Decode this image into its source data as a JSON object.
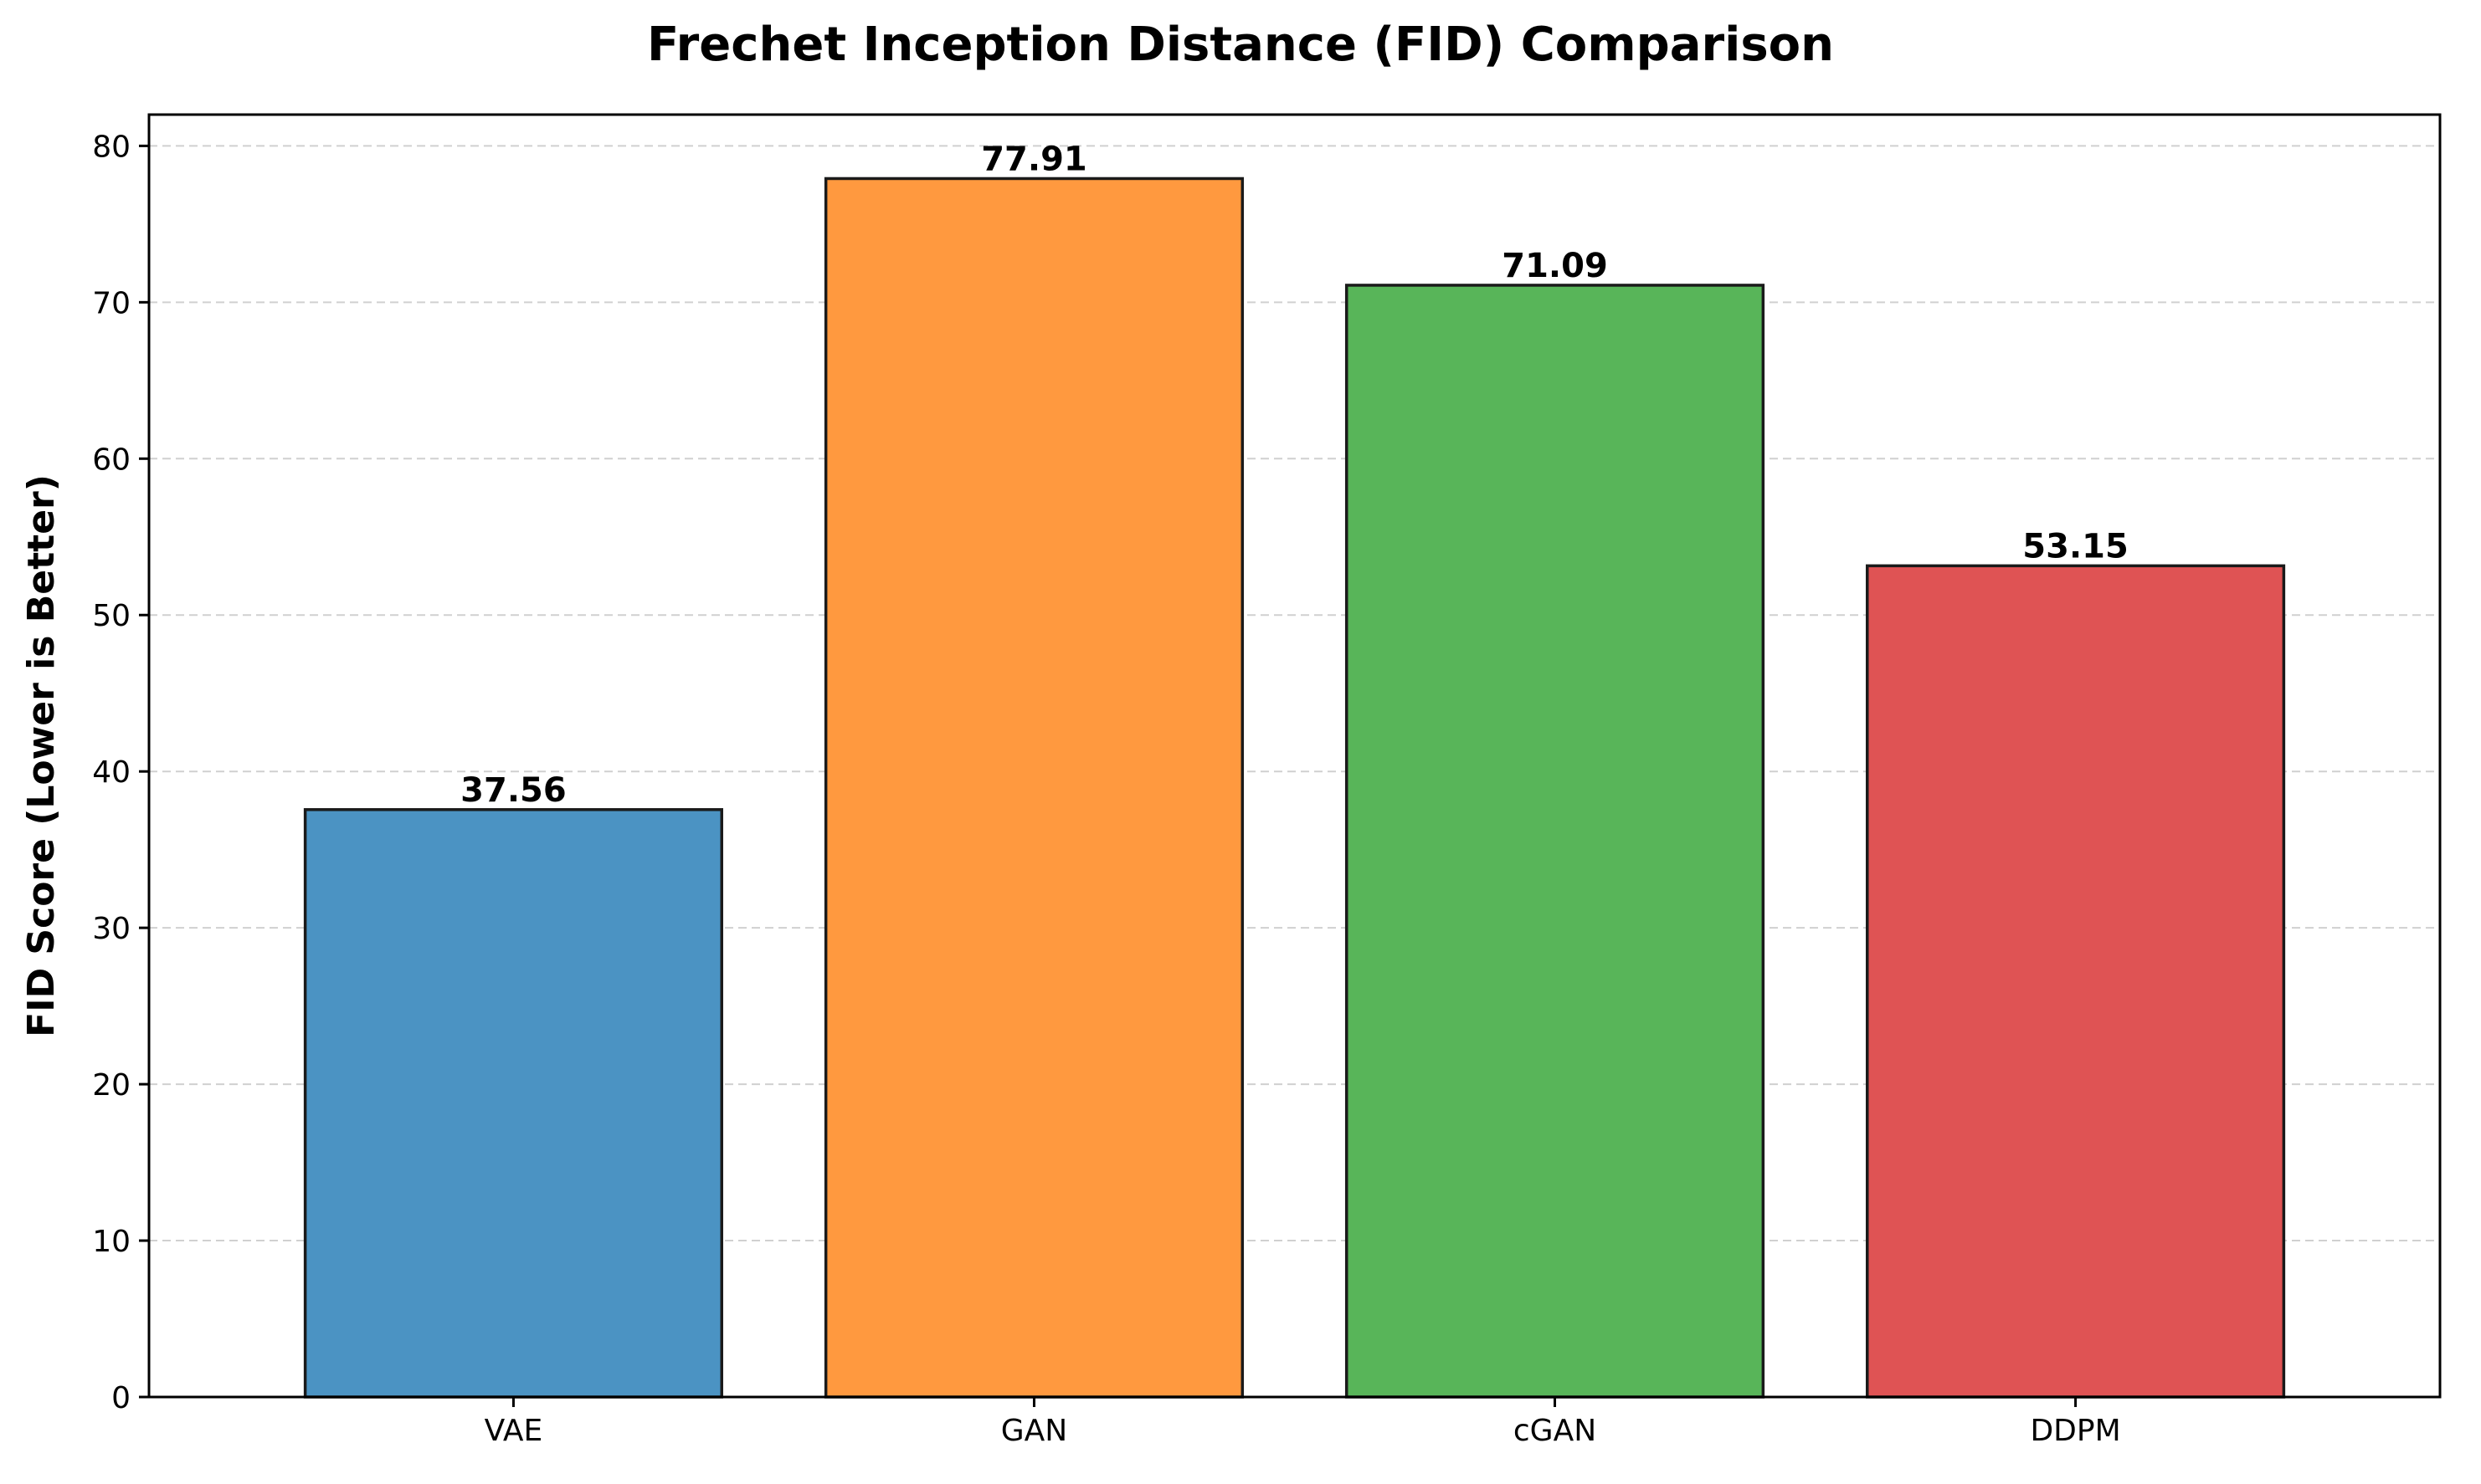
{
  "chart_data": {
    "type": "bar",
    "title": "Frechet Inception Distance (FID) Comparison",
    "xlabel": "",
    "ylabel": "FID Score (Lower is Better)",
    "categories": [
      "VAE",
      "GAN",
      "cGAN",
      "DDPM"
    ],
    "values": [
      37.56,
      77.91,
      71.09,
      53.15
    ],
    "value_labels": [
      "37.56",
      "77.91",
      "71.09",
      "53.15"
    ],
    "colors": [
      "#4b93c3",
      "#ff993f",
      "#58b559",
      "#df5354"
    ],
    "ylim": [
      0,
      82
    ],
    "yticks": [
      0,
      10,
      20,
      30,
      40,
      50,
      60,
      70,
      80
    ],
    "grid": "y-dashed",
    "legend": "none"
  }
}
